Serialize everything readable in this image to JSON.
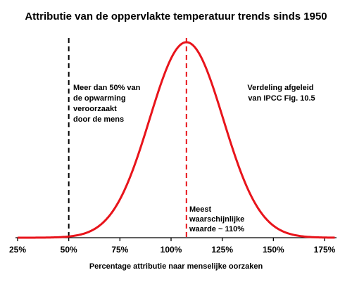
{
  "chart_data": {
    "type": "line",
    "title": "Attributie van de oppervlakte temperatuur trends sinds 1950",
    "xlabel": "Percentage attributie naar menselijke oorzaken",
    "ylabel": "",
    "xlim": [
      25,
      180
    ],
    "x_ticks": [
      25,
      50,
      75,
      100,
      125,
      150,
      175
    ],
    "x_tick_labels": [
      "25%",
      "50%",
      "75%",
      "100%",
      "125%",
      "150%",
      "175%"
    ],
    "distribution": {
      "kind": "normal",
      "mean": 107.5,
      "sd": 18
    },
    "series": [
      {
        "color": "#e8141b",
        "x": [
          25,
          40,
          50,
          60,
          70,
          80,
          90,
          100,
          107.5,
          115,
          125,
          135,
          145,
          155,
          165,
          180
        ],
        "y": [
          0.0,
          0.001,
          0.006,
          0.031,
          0.114,
          0.311,
          0.623,
          0.917,
          1.0,
          0.917,
          0.623,
          0.311,
          0.114,
          0.031,
          0.006,
          0.0
        ]
      }
    ],
    "vlines": [
      {
        "x": 50,
        "color": "#000000",
        "style": "dashed"
      },
      {
        "x": 107.5,
        "color": "#e8141b",
        "style": "dashed"
      }
    ],
    "annotations": [
      {
        "lines": [
          "Meer dan 50% van",
          "de opwarming",
          "veroorzaakt",
          "door de mens"
        ]
      },
      {
        "lines": [
          "Verdeling afgeleid",
          "van IPCC Fig. 10.5"
        ]
      },
      {
        "lines": [
          "Meest",
          "waarschijnlijke",
          "waarde ~ 110%"
        ]
      }
    ],
    "grid": false,
    "legend": "none"
  }
}
